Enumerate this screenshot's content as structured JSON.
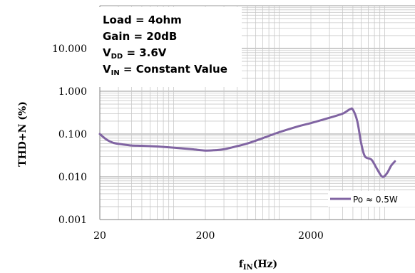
{
  "chart_data": {
    "type": "line",
    "xscale": "log",
    "yscale": "log",
    "xlim": [
      20,
      20000
    ],
    "ylim": [
      0.001,
      100
    ],
    "grid": true,
    "legend_position": "bottom-right",
    "xlabel": {
      "main": "f",
      "sub": "IN",
      "rest": "(Hz)"
    },
    "ylabel": "THD+N (%)",
    "x_ticks": [
      {
        "value": 20,
        "label": "20"
      },
      {
        "value": 200,
        "label": "200"
      },
      {
        "value": 2000,
        "label": "2000"
      }
    ],
    "y_ticks": [
      {
        "value": 10,
        "label": "10.000"
      },
      {
        "value": 1,
        "label": "1.000"
      },
      {
        "value": 0.1,
        "label": "0.100"
      },
      {
        "value": 0.01,
        "label": "0.010"
      },
      {
        "value": 0.001,
        "label": "0.001"
      }
    ],
    "annotations": [
      {
        "main": "Load = 4ohm",
        "sub": "",
        "rest": ""
      },
      {
        "main": "Gain = 20dB",
        "sub": "",
        "rest": ""
      },
      {
        "main": "V",
        "sub": "DD",
        "rest": " = 3.6V"
      },
      {
        "main": "V",
        "sub": "IN",
        "rest": " = Constant Value"
      }
    ],
    "series": [
      {
        "name": "Po ≈ 0.5W",
        "color": "#8064a2",
        "points": [
          [
            20,
            0.1
          ],
          [
            23,
            0.075
          ],
          [
            27,
            0.062
          ],
          [
            33,
            0.057
          ],
          [
            40,
            0.054
          ],
          [
            50,
            0.053
          ],
          [
            70,
            0.051
          ],
          [
            100,
            0.048
          ],
          [
            150,
            0.044
          ],
          [
            200,
            0.041
          ],
          [
            250,
            0.042
          ],
          [
            300,
            0.044
          ],
          [
            400,
            0.052
          ],
          [
            500,
            0.06
          ],
          [
            700,
            0.08
          ],
          [
            1000,
            0.11
          ],
          [
            1500,
            0.15
          ],
          [
            2000,
            0.18
          ],
          [
            3000,
            0.24
          ],
          [
            4000,
            0.3
          ],
          [
            4700,
            0.38
          ],
          [
            5000,
            0.37
          ],
          [
            5500,
            0.2
          ],
          [
            6000,
            0.06
          ],
          [
            6500,
            0.03
          ],
          [
            7500,
            0.025
          ],
          [
            8500,
            0.015
          ],
          [
            9500,
            0.01
          ],
          [
            10500,
            0.012
          ],
          [
            11500,
            0.018
          ],
          [
            12500,
            0.023
          ]
        ]
      }
    ]
  }
}
